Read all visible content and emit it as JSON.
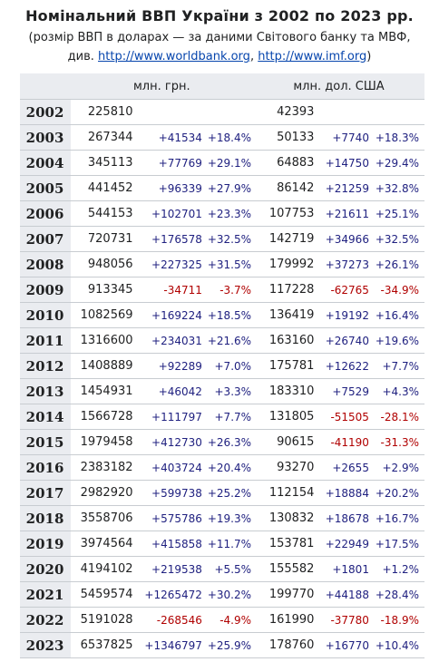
{
  "title": "Номінальний ВВП України з 2002 по 2023 рр.",
  "subtitle_line1": "(розмір ВВП в доларах — за даними Світового банку та МВФ,",
  "subtitle_prefix": "див.",
  "link_worldbank": "http://www.worldbank.org",
  "link_separator": ",",
  "link_imf": "http://www.imf.org",
  "subtitle_suffix": ")",
  "headers": {
    "uah": "млн. грн.",
    "usd": "млн. дол. США"
  },
  "colors": {
    "positive": "#202180",
    "negative": "#b00000",
    "header_bg": "#eaecf0"
  },
  "rows": [
    {
      "year": "2002",
      "uah": "225810",
      "duah": "",
      "puah": "",
      "usd": "42393",
      "dusd": "",
      "pusd": ""
    },
    {
      "year": "2003",
      "uah": "267344",
      "duah": "+41534",
      "puah": "+18.4%",
      "usd": "50133",
      "dusd": "+7740",
      "pusd": "+18.3%"
    },
    {
      "year": "2004",
      "uah": "345113",
      "duah": "+77769",
      "puah": "+29.1%",
      "usd": "64883",
      "dusd": "+14750",
      "pusd": "+29.4%"
    },
    {
      "year": "2005",
      "uah": "441452",
      "duah": "+96339",
      "puah": "+27.9%",
      "usd": "86142",
      "dusd": "+21259",
      "pusd": "+32.8%"
    },
    {
      "year": "2006",
      "uah": "544153",
      "duah": "+102701",
      "puah": "+23.3%",
      "usd": "107753",
      "dusd": "+21611",
      "pusd": "+25.1%"
    },
    {
      "year": "2007",
      "uah": "720731",
      "duah": "+176578",
      "puah": "+32.5%",
      "usd": "142719",
      "dusd": "+34966",
      "pusd": "+32.5%"
    },
    {
      "year": "2008",
      "uah": "948056",
      "duah": "+227325",
      "puah": "+31.5%",
      "usd": "179992",
      "dusd": "+37273",
      "pusd": "+26.1%"
    },
    {
      "year": "2009",
      "uah": "913345",
      "duah": "-34711",
      "puah": "-3.7%",
      "usd": "117228",
      "dusd": "-62765",
      "pusd": "-34.9%"
    },
    {
      "year": "2010",
      "uah": "1082569",
      "duah": "+169224",
      "puah": "+18.5%",
      "usd": "136419",
      "dusd": "+19192",
      "pusd": "+16.4%"
    },
    {
      "year": "2011",
      "uah": "1316600",
      "duah": "+234031",
      "puah": "+21.6%",
      "usd": "163160",
      "dusd": "+26740",
      "pusd": "+19.6%"
    },
    {
      "year": "2012",
      "uah": "1408889",
      "duah": "+92289",
      "puah": "+7.0%",
      "usd": "175781",
      "dusd": "+12622",
      "pusd": "+7.7%"
    },
    {
      "year": "2013",
      "uah": "1454931",
      "duah": "+46042",
      "puah": "+3.3%",
      "usd": "183310",
      "dusd": "+7529",
      "pusd": "+4.3%"
    },
    {
      "year": "2014",
      "uah": "1566728",
      "duah": "+111797",
      "puah": "+7.7%",
      "usd": "131805",
      "dusd": "-51505",
      "pusd": "-28.1%"
    },
    {
      "year": "2015",
      "uah": "1979458",
      "duah": "+412730",
      "puah": "+26.3%",
      "usd": "90615",
      "dusd": "-41190",
      "pusd": "-31.3%"
    },
    {
      "year": "2016",
      "uah": "2383182",
      "duah": "+403724",
      "puah": "+20.4%",
      "usd": "93270",
      "dusd": "+2655",
      "pusd": "+2.9%"
    },
    {
      "year": "2017",
      "uah": "2982920",
      "duah": "+599738",
      "puah": "+25.2%",
      "usd": "112154",
      "dusd": "+18884",
      "pusd": "+20.2%"
    },
    {
      "year": "2018",
      "uah": "3558706",
      "duah": "+575786",
      "puah": "+19.3%",
      "usd": "130832",
      "dusd": "+18678",
      "pusd": "+16.7%"
    },
    {
      "year": "2019",
      "uah": "3974564",
      "duah": "+415858",
      "puah": "+11.7%",
      "usd": "153781",
      "dusd": "+22949",
      "pusd": "+17.5%"
    },
    {
      "year": "2020",
      "uah": "4194102",
      "duah": "+219538",
      "puah": "+5.5%",
      "usd": "155582",
      "dusd": "+1801",
      "pusd": "+1.2%"
    },
    {
      "year": "2021",
      "uah": "5459574",
      "duah": "+1265472",
      "puah": "+30.2%",
      "usd": "199770",
      "dusd": "+44188",
      "pusd": "+28.4%"
    },
    {
      "year": "2022",
      "uah": "5191028",
      "duah": "-268546",
      "puah": "-4.9%",
      "usd": "161990",
      "dusd": "-37780",
      "pusd": "-18.9%"
    },
    {
      "year": "2023",
      "uah": "6537825",
      "duah": "+1346797",
      "puah": "+25.9%",
      "usd": "178760",
      "dusd": "+16770",
      "pusd": "+10.4%"
    }
  ]
}
